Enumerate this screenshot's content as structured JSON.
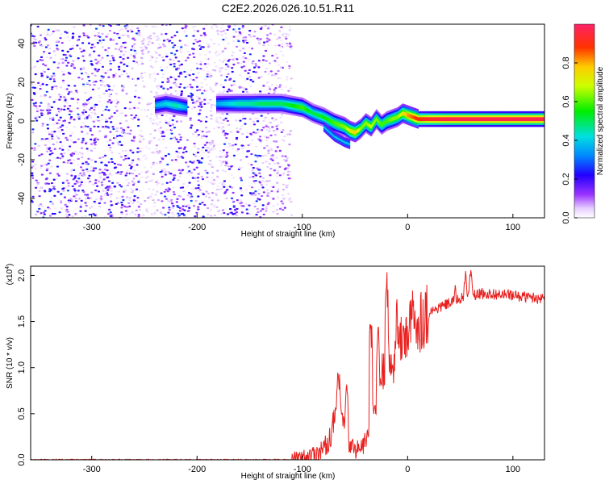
{
  "title": "C2E2.2026.026.10.51.R11",
  "chart_data": [
    {
      "type": "heatmap",
      "name": "spectrogram",
      "xlabel": "Height of straight line (km)",
      "ylabel": "Frequency (Hz)",
      "xlim": [
        -358,
        130
      ],
      "ylim": [
        -50,
        50
      ],
      "xticks": [
        -300,
        -200,
        -100,
        0,
        100
      ],
      "yticks": [
        -40,
        -20,
        0,
        20,
        40
      ],
      "noise_region_x": [
        -358,
        -110
      ],
      "noise_gaps_x": [
        [
          -255,
          -235
        ],
        [
          -190,
          -175
        ]
      ],
      "colorbar": {
        "label": "Normalized spectral amplitude",
        "range": [
          0,
          1
        ],
        "ticks": [
          0.0,
          0.2,
          0.4,
          0.6,
          0.8
        ]
      },
      "ridge": {
        "x": [
          -240,
          -230,
          -220,
          -210,
          -205,
          -180,
          -170,
          -160,
          -150,
          -140,
          -130,
          -120,
          -110,
          -100,
          -90,
          -80,
          -70,
          -60,
          -55,
          -50,
          -45,
          -40,
          -35,
          -30,
          -25,
          -20,
          -15,
          -10,
          -5,
          0,
          5,
          10,
          20,
          40,
          60,
          80,
          100,
          130
        ],
        "y": [
          8,
          9,
          8,
          7,
          8,
          9,
          9,
          9,
          9,
          9,
          9,
          9,
          8,
          7,
          4,
          2,
          -1,
          -3,
          -5,
          -6,
          -4,
          -1,
          -3,
          1,
          -2,
          0,
          1,
          2,
          4,
          3,
          2,
          1,
          1,
          1,
          1,
          1,
          1,
          1
        ],
        "amplitude": [
          0.3,
          0.35,
          0.4,
          0.3,
          0.2,
          0.3,
          0.35,
          0.4,
          0.4,
          0.45,
          0.45,
          0.45,
          0.5,
          0.55,
          0.45,
          0.5,
          0.55,
          0.6,
          0.7,
          0.75,
          0.6,
          0.6,
          0.65,
          0.6,
          0.55,
          0.55,
          0.6,
          0.6,
          0.7,
          0.8,
          0.85,
          0.9,
          0.95,
          1.0,
          1.0,
          1.0,
          1.0,
          1.0
        ]
      },
      "ridge_branch": {
        "x": [
          -80,
          -70,
          -60,
          -55
        ],
        "y": [
          -3,
          -8,
          -11,
          -12
        ]
      }
    },
    {
      "type": "line",
      "name": "snr",
      "xlabel": "Height of straight line (km)",
      "ylabel": "SNR (10 * v/v)",
      "multiplier_label": "(x10",
      "multiplier_exp": "4",
      "multiplier_close": ")",
      "xlim": [
        -358,
        130
      ],
      "ylim": [
        0,
        2.1
      ],
      "xticks": [
        -300,
        -200,
        -100,
        0,
        100
      ],
      "yticks": [
        0.0,
        0.5,
        1.0,
        1.5,
        2.0
      ],
      "ytick_labels": [
        "0.0",
        "0.5",
        "1.0",
        "1.5",
        "2.0"
      ],
      "color": "#e8201e",
      "envelope": {
        "x": [
          -358,
          -150,
          -110,
          -100,
          -90,
          -80,
          -75,
          -70,
          -65,
          -60,
          -55,
          -50,
          -45,
          -40,
          -35,
          -30,
          -25,
          -20,
          -15,
          -10,
          -5,
          0,
          10,
          20,
          30,
          40,
          50,
          60,
          70,
          80,
          100,
          120,
          130
        ],
        "y": [
          0.0,
          0.0,
          0.0,
          0.02,
          0.06,
          0.12,
          0.2,
          0.4,
          0.6,
          0.35,
          0.15,
          0.12,
          0.12,
          0.2,
          0.35,
          0.6,
          0.9,
          1.05,
          1.05,
          1.15,
          1.3,
          1.4,
          1.5,
          1.6,
          1.65,
          1.7,
          1.75,
          1.78,
          1.8,
          1.8,
          1.78,
          1.76,
          1.75
        ]
      },
      "spikes": [
        {
          "x": -66,
          "y": 0.95
        },
        {
          "x": -58,
          "y": 0.75
        },
        {
          "x": -35,
          "y": 1.45
        },
        {
          "x": -28,
          "y": 1.3
        },
        {
          "x": -20,
          "y": 2.0
        },
        {
          "x": -10,
          "y": 1.6
        },
        {
          "x": 5,
          "y": 1.65
        },
        {
          "x": 45,
          "y": 1.9
        },
        {
          "x": 55,
          "y": 2.05
        },
        {
          "x": 60,
          "y": 2.1
        },
        {
          "x": 95,
          "y": 1.88
        }
      ]
    }
  ]
}
